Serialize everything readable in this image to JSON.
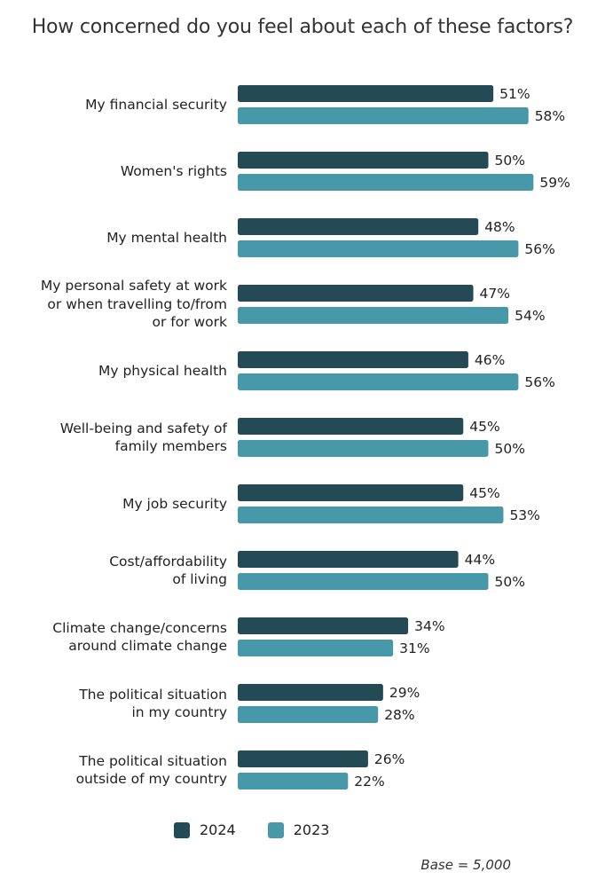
{
  "title": "How concerned do you feel about each of these factors?",
  "chart_data": {
    "type": "bar",
    "orientation": "horizontal",
    "categories": [
      [
        "My financial security"
      ],
      [
        "Women's rights"
      ],
      [
        "My mental health"
      ],
      [
        "My personal safety at work",
        "or when travelling to/from",
        "or for work"
      ],
      [
        "My physical health"
      ],
      [
        "Well-being and safety of",
        "family members"
      ],
      [
        "My job security"
      ],
      [
        "Cost/affordability",
        "of living"
      ],
      [
        "Climate change/concerns",
        "around climate change"
      ],
      [
        "The political situation",
        "in my country"
      ],
      [
        "The political situation",
        "outside of my country"
      ]
    ],
    "series": [
      {
        "name": "2024",
        "color": "#234a55",
        "values": [
          51,
          50,
          48,
          47,
          46,
          45,
          45,
          44,
          34,
          29,
          26
        ]
      },
      {
        "name": "2023",
        "color": "#4798a8",
        "values": [
          58,
          59,
          56,
          54,
          56,
          50,
          53,
          50,
          31,
          28,
          22
        ]
      }
    ],
    "value_suffix": "%",
    "xlim": [
      0,
      100
    ],
    "legend_position": "bottom",
    "grid": false
  },
  "legend": {
    "items": [
      {
        "label": "2024",
        "color": "#234a55"
      },
      {
        "label": "2023",
        "color": "#4798a8"
      }
    ]
  },
  "footnote": "Base = 5,000"
}
